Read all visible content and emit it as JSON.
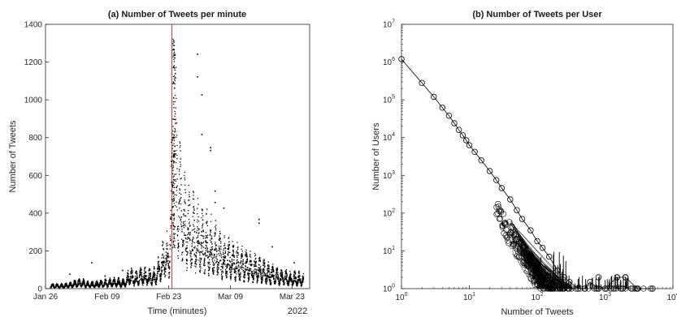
{
  "chart_data": [
    {
      "type": "scatter",
      "title": "(a) Number of Tweets per minute",
      "xlabel": "Time (minutes)",
      "ylabel": "Number of Tweets",
      "x_tick_labels": [
        "Jan 26",
        "Feb 09",
        "Feb 23",
        "Mar 09",
        "Mar 23"
      ],
      "x_year_label": "2022",
      "xlim": [
        "2022-01-26",
        "2022-03-27"
      ],
      "ylim": [
        0,
        1400
      ],
      "y_ticks": [
        0,
        200,
        400,
        600,
        800,
        1000,
        1200,
        1400
      ],
      "marker_color": "#000000",
      "event_line": {
        "date": "2022-02-24",
        "color": "#e03030"
      },
      "daily_peaks": [
        [
          "2022-01-27",
          30
        ],
        [
          "2022-01-28",
          32
        ],
        [
          "2022-01-29",
          28
        ],
        [
          "2022-01-30",
          30
        ],
        [
          "2022-01-31",
          35
        ],
        [
          "2022-02-01",
          40
        ],
        [
          "2022-02-02",
          55
        ],
        [
          "2022-02-03",
          60
        ],
        [
          "2022-02-04",
          45
        ],
        [
          "2022-02-05",
          40
        ],
        [
          "2022-02-06",
          42
        ],
        [
          "2022-02-07",
          48
        ],
        [
          "2022-02-08",
          50
        ],
        [
          "2022-02-09",
          55
        ],
        [
          "2022-02-10",
          60
        ],
        [
          "2022-02-11",
          65
        ],
        [
          "2022-02-12",
          55
        ],
        [
          "2022-02-13",
          60
        ],
        [
          "2022-02-14",
          130
        ],
        [
          "2022-02-15",
          90
        ],
        [
          "2022-02-16",
          100
        ],
        [
          "2022-02-17",
          120
        ],
        [
          "2022-02-18",
          110
        ],
        [
          "2022-02-19",
          100
        ],
        [
          "2022-02-20",
          130
        ],
        [
          "2022-02-21",
          200
        ],
        [
          "2022-02-22",
          310
        ],
        [
          "2022-02-23",
          300
        ],
        [
          "2022-02-24",
          1340
        ],
        [
          "2022-02-25",
          900
        ],
        [
          "2022-02-26",
          650
        ],
        [
          "2022-02-27",
          600
        ],
        [
          "2022-02-28",
          520
        ],
        [
          "2022-03-01",
          480
        ],
        [
          "2022-03-02",
          450
        ],
        [
          "2022-03-03",
          420
        ],
        [
          "2022-03-04",
          400
        ],
        [
          "2022-03-05",
          370
        ],
        [
          "2022-03-06",
          330
        ],
        [
          "2022-03-07",
          300
        ],
        [
          "2022-03-08",
          280
        ],
        [
          "2022-03-09",
          260
        ],
        [
          "2022-03-10",
          250
        ],
        [
          "2022-03-11",
          230
        ],
        [
          "2022-03-12",
          220
        ],
        [
          "2022-03-13",
          210
        ],
        [
          "2022-03-14",
          200
        ],
        [
          "2022-03-15",
          190
        ],
        [
          "2022-03-16",
          160
        ],
        [
          "2022-03-17",
          150
        ],
        [
          "2022-03-18",
          140
        ],
        [
          "2022-03-19",
          130
        ],
        [
          "2022-03-20",
          110
        ],
        [
          "2022-03-21",
          110
        ],
        [
          "2022-03-22",
          100
        ],
        [
          "2022-03-23",
          100
        ],
        [
          "2022-03-24",
          95
        ],
        [
          "2022-03-25",
          90
        ]
      ],
      "outliers": [
        [
          "2022-01-31",
          80
        ],
        [
          "2022-02-05",
          140
        ],
        [
          "2022-02-08",
          70
        ],
        [
          "2022-02-12",
          100
        ],
        [
          "2022-03-01",
          1245
        ],
        [
          "2022-03-01",
          1125
        ],
        [
          "2022-03-02",
          1030
        ],
        [
          "2022-03-02",
          820
        ],
        [
          "2022-03-04",
          750
        ],
        [
          "2022-03-04",
          735
        ],
        [
          "2022-03-05",
          520
        ],
        [
          "2022-03-05",
          460
        ],
        [
          "2022-03-07",
          430
        ],
        [
          "2022-03-15",
          370
        ],
        [
          "2022-03-15",
          350
        ],
        [
          "2022-03-18",
          225
        ],
        [
          "2022-03-23",
          140
        ]
      ]
    },
    {
      "type": "scatter",
      "title": "(b) Number of Tweets per User",
      "xlabel": "Number of Tweets",
      "ylabel": "Number of Users",
      "xscale": "log",
      "yscale": "log",
      "xlim": [
        1,
        10000
      ],
      "ylim": [
        1,
        10000000
      ],
      "x_ticks": [
        1,
        10,
        100,
        1000,
        10000
      ],
      "y_ticks": [
        1,
        10,
        100,
        1000,
        10000,
        100000,
        1000000,
        10000000
      ],
      "marker": "open-circle",
      "line_color": "#000000",
      "x": [
        1,
        2,
        3,
        4,
        5,
        6,
        7,
        8,
        9,
        10,
        12,
        15,
        20,
        25,
        30,
        40,
        50,
        60,
        80,
        100,
        120,
        150,
        200,
        250,
        300,
        400,
        500,
        600,
        800,
        1000,
        1500,
        2000,
        3000,
        5000
      ],
      "y": [
        1200000,
        280000,
        120000,
        62000,
        38000,
        24000,
        16000,
        11500,
        8500,
        6300,
        4200,
        2500,
        1300,
        750,
        460,
        230,
        120,
        70,
        35,
        18,
        12,
        7,
        3,
        2,
        1.5,
        1,
        1,
        1.5,
        1,
        1,
        2,
        2,
        1,
        1
      ],
      "extra_points": [
        [
          800,
          2
        ],
        [
          1500,
          2
        ],
        [
          2000,
          2
        ]
      ]
    }
  ]
}
